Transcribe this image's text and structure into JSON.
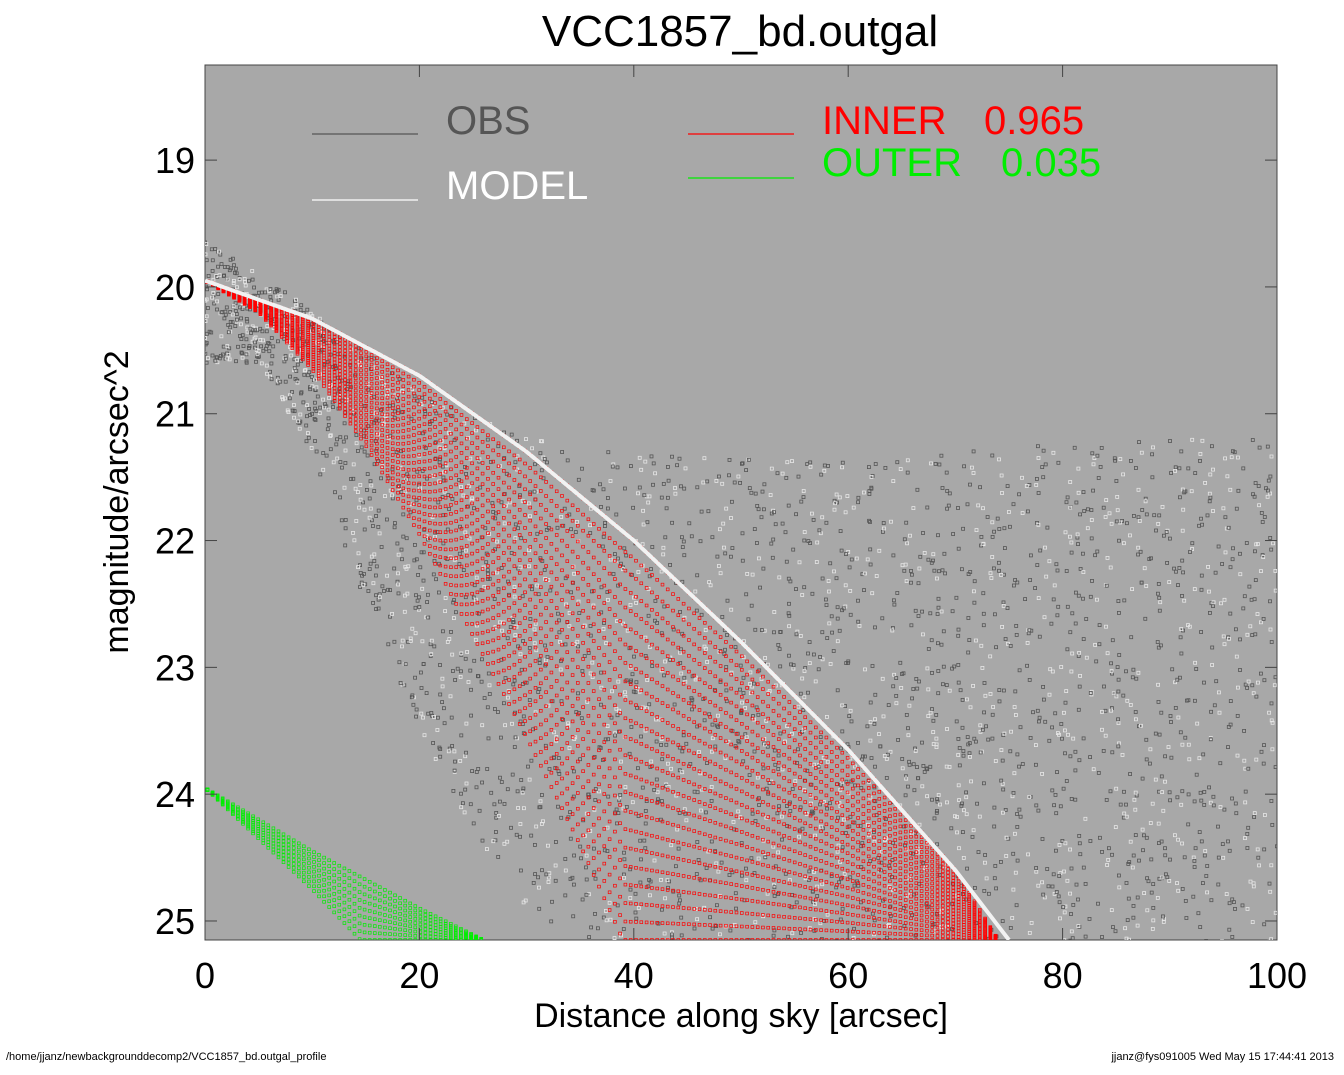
{
  "chart_data": {
    "type": "scatter",
    "title": "VCC1857_bd.outgal",
    "xlabel": "Distance along sky [arcsec]",
    "ylabel": "magnitude/arcsec^2",
    "xlim": [
      0,
      100
    ],
    "ylim": [
      25.15,
      18.25
    ],
    "y_inverted": true,
    "xticks": [
      0,
      20,
      40,
      60,
      80,
      100
    ],
    "yticks": [
      19,
      20,
      21,
      22,
      23,
      24,
      25
    ],
    "grid": false,
    "legend_placement": "top",
    "plot_background": "#a8a8a8",
    "series": [
      {
        "name": "OBS",
        "color": "#555555",
        "description_of_shape": "noisy observed profile",
        "envelope_upper": [
          [
            0,
            19.75
          ],
          [
            10,
            20.3
          ],
          [
            20,
            20.95
          ],
          [
            30,
            21.3
          ],
          [
            40,
            21.45
          ],
          [
            60,
            21.5
          ],
          [
            80,
            21.35
          ],
          [
            100,
            21.3
          ]
        ],
        "envelope_lower": [
          [
            5,
            20.6
          ],
          [
            10,
            21.3
          ],
          [
            15,
            22.5
          ],
          [
            20,
            23.5
          ],
          [
            25,
            24.3
          ],
          [
            30,
            24.9
          ],
          [
            35,
            25.15
          ]
        ],
        "right_edge": 100
      },
      {
        "name": "MODEL",
        "color": "#f2f2f2",
        "outer_curve": [
          [
            0,
            19.95
          ],
          [
            10,
            20.25
          ],
          [
            20,
            20.7
          ],
          [
            30,
            21.3
          ],
          [
            40,
            22.0
          ],
          [
            50,
            22.8
          ],
          [
            60,
            23.65
          ],
          [
            70,
            24.6
          ],
          [
            75,
            25.15
          ]
        ]
      },
      {
        "name": "INNER",
        "value_label": "0.965",
        "color": "#ff0000",
        "outer_curve": [
          [
            0,
            19.95
          ],
          [
            10,
            20.25
          ],
          [
            20,
            20.7
          ],
          [
            30,
            21.3
          ],
          [
            40,
            22.0
          ],
          [
            50,
            22.8
          ],
          [
            60,
            23.65
          ],
          [
            70,
            24.6
          ],
          [
            74,
            25.15
          ]
        ],
        "inner_curve": [
          [
            0,
            19.95
          ],
          [
            5,
            20.2
          ],
          [
            10,
            20.65
          ],
          [
            15,
            21.25
          ],
          [
            20,
            21.95
          ],
          [
            25,
            22.75
          ],
          [
            30,
            23.55
          ],
          [
            35,
            24.4
          ],
          [
            39,
            25.15
          ]
        ]
      },
      {
        "name": "OUTER",
        "value_label": "0.035",
        "color": "#00ee00",
        "outer_curve": [
          [
            0,
            23.95
          ],
          [
            10,
            24.45
          ],
          [
            20,
            24.9
          ],
          [
            26,
            25.15
          ]
        ],
        "inner_curve": [
          [
            0,
            23.95
          ],
          [
            5,
            24.35
          ],
          [
            10,
            24.75
          ],
          [
            14.5,
            25.15
          ]
        ]
      }
    ]
  },
  "legend": [
    {
      "label": "OBS",
      "color": "#555555"
    },
    {
      "label": "MODEL",
      "color": "#ffffff"
    },
    {
      "label": "INNER",
      "value": "0.965",
      "color": "#ff0000"
    },
    {
      "label": "OUTER",
      "value": "0.035",
      "color": "#00ee00"
    }
  ],
  "footer": {
    "path": "/home/jjanz/newbackgrounddecomp2/VCC1857_bd.outgal_profile",
    "stamp": "jjanz@fys091005  Wed May 15 17:44:41 2013"
  }
}
